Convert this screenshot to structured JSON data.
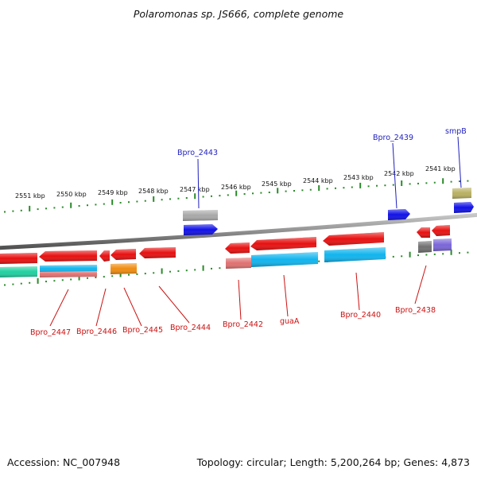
{
  "title": "Polaromonas sp. JS666, complete genome",
  "footer": {
    "accession": "Accession: NC_007948",
    "summary": "Topology: circular; Length: 5,200,264 bp; Genes: 4,873"
  },
  "ticks": [
    "2551 kbp",
    "2550 kbp",
    "2549 kbp",
    "2548 kbp",
    "2547 kbp",
    "2546 kbp",
    "2545 kbp",
    "2544 kbp",
    "2543 kbp",
    "2542 kbp",
    "2541 kbp"
  ],
  "gene_labels_top": [
    "Bpro_2443",
    "Bpro_2439",
    "smpB"
  ],
  "gene_labels_bottom": [
    "Bpro_2447",
    "Bpro_2446",
    "Bpro_2445",
    "Bpro_2444",
    "Bpro_2442",
    "guaA",
    "Bpro_2440",
    "Bpro_2438"
  ],
  "colors": {
    "red": "#e81010",
    "blue": "#1010e8",
    "gray": "#a8a8a8",
    "cyan": "#10b4ee",
    "pink": "#e07070",
    "teal": "#20d0a0",
    "orange": "#f08c10",
    "olive": "#b8b060",
    "darkgray": "#707070",
    "purple": "#7a66d8",
    "tick_green": "#2a8a2a",
    "backbone": "#808080",
    "label_top": "#1f1fbf",
    "label_bottom": "#cc1111"
  }
}
